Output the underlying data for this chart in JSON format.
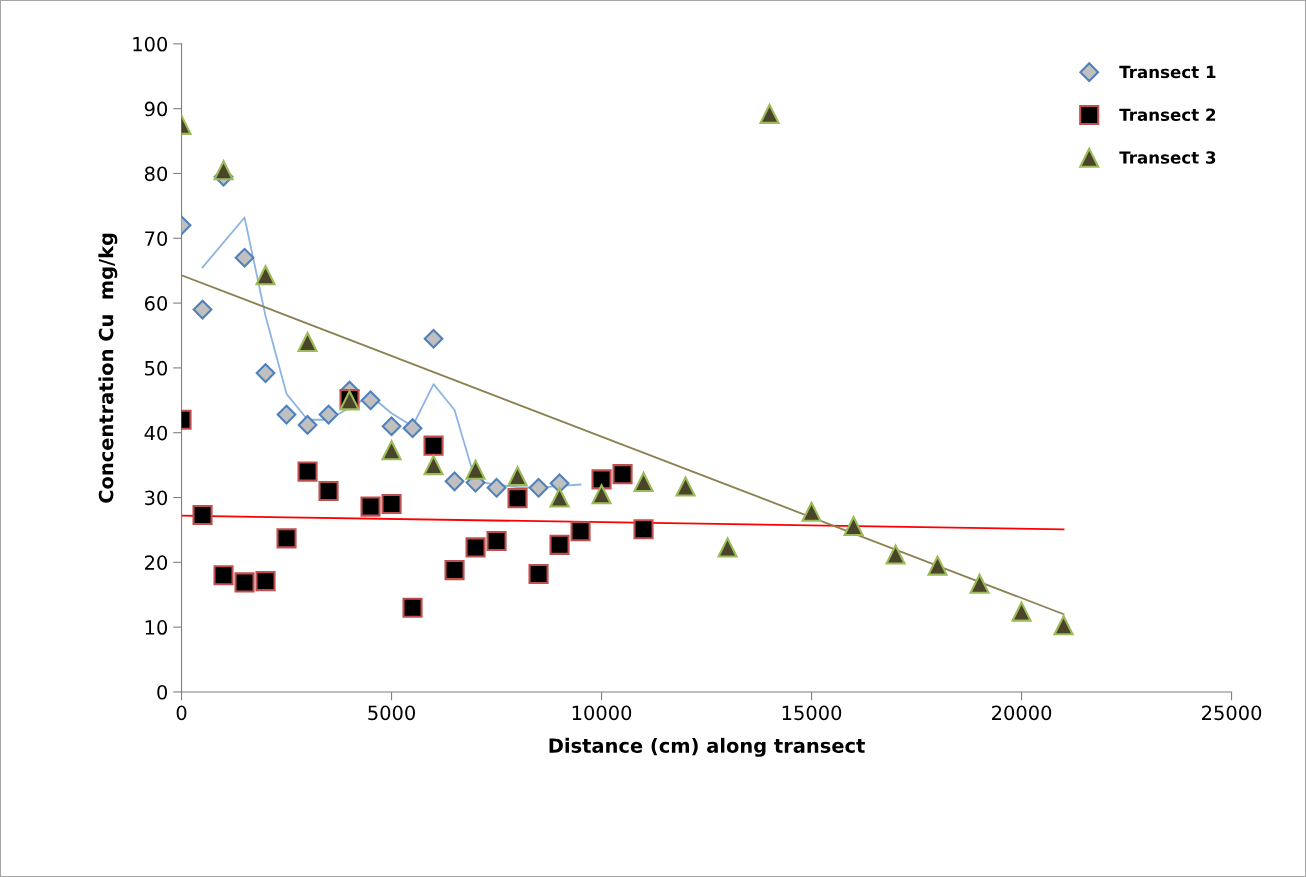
{
  "chart_data": {
    "type": "scatter",
    "xlabel": "Distance (cm) along transect",
    "ylabel": "Concentration Cu  mg/kg",
    "xlim": [
      0,
      25000
    ],
    "xticks": [
      0,
      5000,
      10000,
      15000,
      20000,
      25000
    ],
    "ylim": [
      0,
      100
    ],
    "yticks": [
      0,
      10,
      20,
      30,
      40,
      50,
      60,
      70,
      80,
      90,
      100
    ],
    "grid": false,
    "legend": "top right",
    "series": [
      {
        "name": "Transect 1",
        "marker": "diamond",
        "color": "#c0c0c0",
        "x": [
          0,
          500,
          1000,
          1500,
          2000,
          2500,
          3000,
          3500,
          4000,
          4500,
          5000,
          5500,
          6000,
          6500,
          7000,
          7500,
          8500,
          9000
        ],
        "values": [
          72,
          59,
          79.5,
          67,
          49.2,
          42.8,
          41.2,
          42.8,
          46.5,
          45,
          41,
          40.7,
          54.5,
          32.5,
          32.3,
          31.5,
          31.5,
          32.2
        ]
      },
      {
        "name": "Transect 2",
        "marker": "square",
        "color": "#000000",
        "x": [
          0,
          500,
          1000,
          1500,
          2000,
          2500,
          3000,
          3500,
          4000,
          4500,
          5000,
          5500,
          6000,
          6500,
          7000,
          7500,
          8000,
          8500,
          9000,
          9500,
          10000,
          10500,
          11000
        ],
        "values": [
          42,
          27.3,
          18,
          16.9,
          17.1,
          23.7,
          34,
          31,
          45.2,
          28.6,
          29,
          13,
          38,
          18.8,
          22.3,
          23.3,
          29.9,
          18.2,
          22.7,
          24.8,
          32.8,
          33.6,
          25.1
        ]
      },
      {
        "name": "Transect 3",
        "marker": "triangle",
        "color": "#4a452a",
        "x": [
          0,
          1000,
          2000,
          3000,
          4000,
          5000,
          6000,
          7000,
          8000,
          9000,
          10000,
          11000,
          12000,
          13000,
          14000,
          15000,
          16000,
          17000,
          18000,
          19000,
          20000,
          21000
        ],
        "values": [
          87.5,
          80.5,
          64.3,
          54,
          45,
          37.3,
          35,
          34.3,
          33.3,
          30,
          30.5,
          32.4,
          31.7,
          22.3,
          89.2,
          27.8,
          25.6,
          21.2,
          19.5,
          16.7,
          12.4,
          10.3
        ]
      },
      {
        "type": "line",
        "color": "#8db4e2",
        "x": [
          500,
          1500,
          2000,
          2500,
          3000,
          3500,
          4500,
          5000,
          5500,
          6000,
          6500,
          7000,
          7500,
          8000,
          8500,
          9000,
          9500
        ],
        "values": [
          65.5,
          73.2,
          58,
          46,
          42,
          42,
          45.7,
          43,
          41,
          47.5,
          43.5,
          32.5,
          32,
          31.6,
          31.5,
          31.8,
          32
        ]
      },
      {
        "type": "line",
        "color": "#ff0000",
        "x": [
          0,
          21000
        ],
        "values": [
          27.2,
          25.1
        ]
      },
      {
        "type": "line",
        "color": "#8b8050",
        "x": [
          0,
          21000
        ],
        "values": [
          64.3,
          12
        ]
      }
    ]
  }
}
